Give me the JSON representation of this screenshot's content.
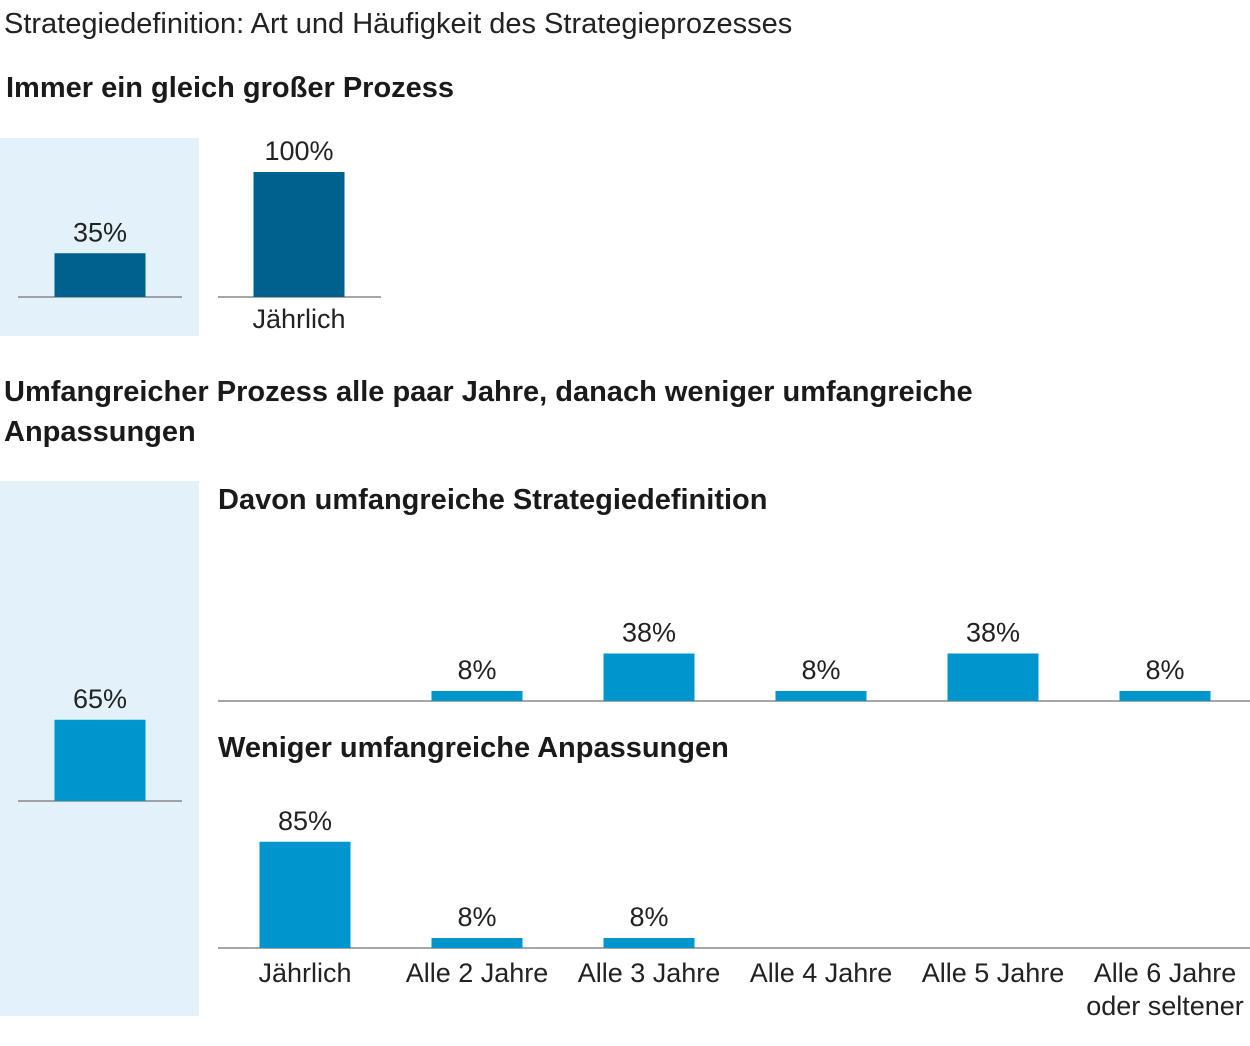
{
  "title": "Strategiedefinition: Art und Häufigkeit des Strategieprozesses",
  "section1": {
    "heading": "Immer ein gleich großer Prozess"
  },
  "section2": {
    "heading_line1": "Umfangreicher Prozess alle paar Jahre, danach weniger umfangreiche",
    "heading_line2": "Anpassungen",
    "sub1_heading": "Davon umfangreiche Strategiedefinition",
    "sub2_heading": "Weniger umfangreiche Anpassungen"
  },
  "colors": {
    "dark_blue": "#00618f",
    "blue": "#0095cc",
    "panel": "#e3f1fa",
    "axis": "#888888"
  },
  "chart_data": [
    {
      "type": "bar",
      "id": "share-same-size",
      "categories": [
        ""
      ],
      "values": [
        35
      ],
      "unit": "%",
      "color": "#00618f"
    },
    {
      "type": "bar",
      "id": "same-size-frequency",
      "categories": [
        "Jährlich"
      ],
      "values": [
        100
      ],
      "unit": "%",
      "color": "#00618f"
    },
    {
      "type": "bar",
      "id": "share-extensive",
      "categories": [
        ""
      ],
      "values": [
        65
      ],
      "unit": "%",
      "color": "#0095cc"
    },
    {
      "type": "bar",
      "id": "extensive-definition",
      "title": "Davon umfangreiche Strategiedefinition",
      "categories": [
        "Jährlich",
        "Alle 2 Jahre",
        "Alle 3 Jahre",
        "Alle 4 Jahre",
        "Alle 5 Jahre",
        "Alle 6 Jahre oder seltener"
      ],
      "values": [
        null,
        8,
        38,
        8,
        38,
        8
      ],
      "unit": "%",
      "color": "#0095cc"
    },
    {
      "type": "bar",
      "id": "minor-adjustments",
      "title": "Weniger umfangreiche Anpassungen",
      "categories": [
        "Jährlich",
        "Alle 2 Jahre",
        "Alle 3 Jahre",
        "Alle 4 Jahre",
        "Alle 5 Jahre",
        "Alle 6 Jahre oder seltener"
      ],
      "values": [
        85,
        8,
        8,
        null,
        null,
        null
      ],
      "unit": "%",
      "color": "#0095cc"
    }
  ],
  "x_labels": [
    {
      "lines": [
        "Jährlich"
      ]
    },
    {
      "lines": [
        "Alle 2 Jahre"
      ]
    },
    {
      "lines": [
        "Alle 3 Jahre"
      ]
    },
    {
      "lines": [
        "Alle 4 Jahre"
      ]
    },
    {
      "lines": [
        "Alle 5 Jahre"
      ]
    },
    {
      "lines": [
        "Alle 6 Jahre",
        "oder seltener"
      ]
    }
  ]
}
